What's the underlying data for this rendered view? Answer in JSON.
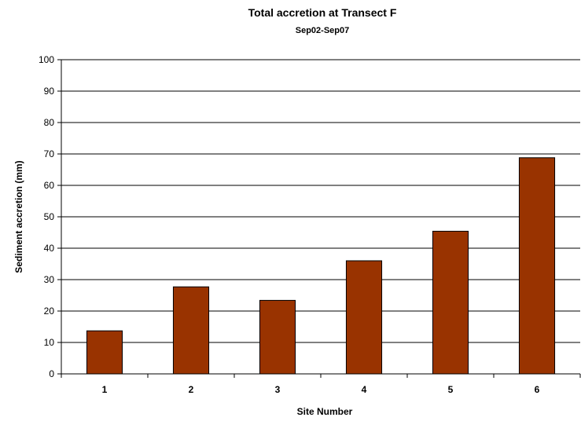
{
  "chart_data": {
    "type": "bar",
    "title": "Total accretion at Transect F",
    "subtitle": "Sep02-Sep07",
    "xlabel": "Site Number",
    "ylabel": "Sediment accretion (mm)",
    "categories": [
      "1",
      "2",
      "3",
      "4",
      "5",
      "6"
    ],
    "values": [
      13.7,
      27.7,
      23.4,
      36.0,
      45.4,
      68.8
    ],
    "ylim": [
      0,
      100
    ],
    "yticks": [
      0,
      10,
      20,
      30,
      40,
      50,
      60,
      70,
      80,
      90,
      100
    ],
    "grid": true,
    "legend": "none",
    "colors": {
      "bar_fill": "#993300",
      "bar_stroke": "#000000",
      "grid": "#000000",
      "axis": "#000000"
    }
  }
}
